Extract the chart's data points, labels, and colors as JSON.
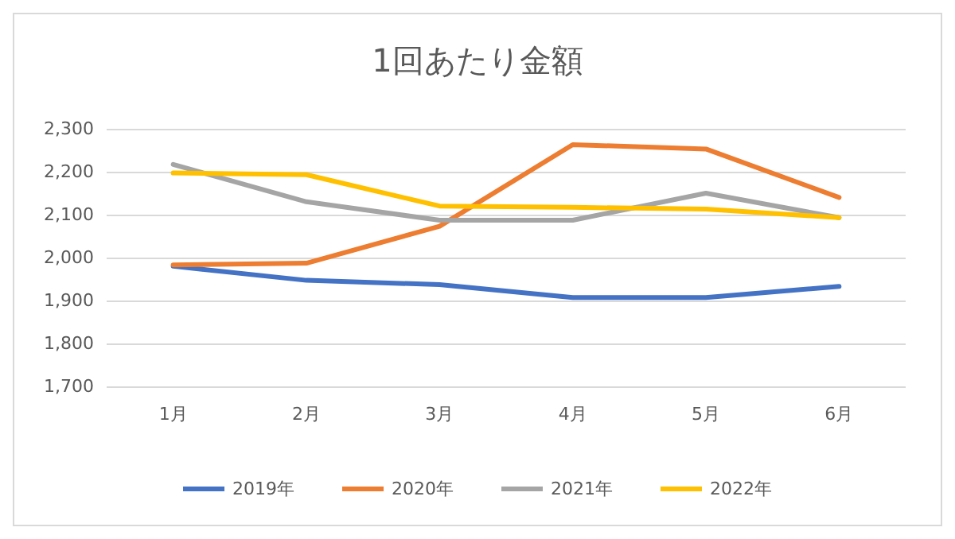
{
  "chart_data": {
    "type": "line",
    "title": "1回あたり金額",
    "categories": [
      "1月",
      "2月",
      "3月",
      "4月",
      "5月",
      "6月"
    ],
    "series": [
      {
        "name": "2019年",
        "color": "#4472c4",
        "values": [
          1980,
          1947,
          1937,
          1907,
          1907,
          1933
        ]
      },
      {
        "name": "2020年",
        "color": "#ed7d31",
        "values": [
          1983,
          1987,
          2073,
          2263,
          2253,
          2140
        ]
      },
      {
        "name": "2021年",
        "color": "#a5a5a5",
        "values": [
          2217,
          2130,
          2087,
          2087,
          2150,
          2093
        ]
      },
      {
        "name": "2022年",
        "color": "#ffc000",
        "values": [
          2197,
          2193,
          2120,
          2117,
          2113,
          2093
        ]
      }
    ],
    "ylim": [
      1700,
      2300
    ],
    "yticks": [
      {
        "value": 1700,
        "label": "1,700"
      },
      {
        "value": 1800,
        "label": "1,800"
      },
      {
        "value": 1900,
        "label": "1,900"
      },
      {
        "value": 2000,
        "label": "2,000"
      },
      {
        "value": 2100,
        "label": "2,100"
      },
      {
        "value": 2200,
        "label": "2,200"
      },
      {
        "value": 2300,
        "label": "2,300"
      }
    ],
    "grid": "y",
    "legend": "bottom",
    "marker": "none",
    "line_style": "solid"
  }
}
